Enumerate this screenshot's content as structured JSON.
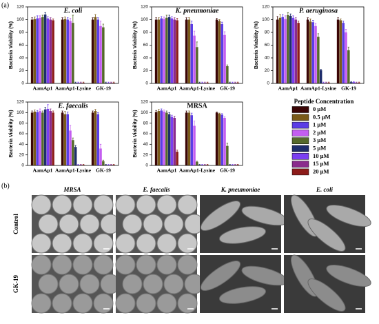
{
  "panel_a_label": "(a)",
  "chart_data": [
    {
      "type": "bar",
      "title": "E. coli",
      "ylabel": "Bacteria Viability (%)",
      "categories": [
        "AamAp1",
        "AamAp1-Lysine",
        "GK-19"
      ],
      "ylim": [
        0,
        120
      ],
      "yticks": [
        0,
        20,
        40,
        60,
        80,
        100,
        120
      ],
      "series": [
        {
          "values": [
            100,
            100,
            100
          ],
          "errors": [
            3,
            3,
            3
          ]
        },
        {
          "values": [
            101,
            101,
            104
          ],
          "errors": [
            3,
            3,
            4
          ]
        },
        {
          "values": [
            102,
            100,
            100
          ],
          "errors": [
            4,
            3,
            3
          ]
        },
        {
          "values": [
            103,
            98,
            90
          ],
          "errors": [
            3,
            4,
            8
          ]
        },
        {
          "values": [
            104,
            95,
            88
          ],
          "errors": [
            3,
            12,
            5
          ]
        },
        {
          "values": [
            108,
            1,
            1
          ],
          "errors": [
            3,
            1,
            1
          ]
        },
        {
          "values": [
            102,
            1,
            1
          ],
          "errors": [
            3,
            1,
            1
          ]
        },
        {
          "values": [
            100,
            1,
            1
          ],
          "errors": [
            3,
            1,
            1
          ]
        },
        {
          "values": [
            99,
            1,
            1
          ],
          "errors": [
            2,
            1,
            1
          ]
        }
      ]
    },
    {
      "type": "bar",
      "title": "K. pneumoniae",
      "ylabel": "Bacteria Viability (%)",
      "categories": [
        "AamAp1",
        "AamAp1-Lysine",
        "GK-19"
      ],
      "ylim": [
        0,
        120
      ],
      "yticks": [
        0,
        20,
        40,
        60,
        80,
        100,
        120
      ],
      "series": [
        {
          "values": [
            100,
            100,
            100
          ],
          "errors": [
            3,
            3,
            2
          ]
        },
        {
          "values": [
            100,
            100,
            98
          ],
          "errors": [
            3,
            3,
            2
          ]
        },
        {
          "values": [
            102,
            93,
            93
          ],
          "errors": [
            3,
            5,
            3
          ]
        },
        {
          "values": [
            101,
            75,
            76
          ],
          "errors": [
            3,
            7,
            5
          ]
        },
        {
          "values": [
            103,
            57,
            27
          ],
          "errors": [
            4,
            8,
            2
          ]
        },
        {
          "values": [
            104,
            1,
            1
          ],
          "errors": [
            3,
            1,
            1
          ]
        },
        {
          "values": [
            102,
            1,
            1
          ],
          "errors": [
            3,
            1,
            1
          ]
        },
        {
          "values": [
            100,
            1,
            1
          ],
          "errors": [
            3,
            1,
            1
          ]
        },
        {
          "values": [
            99,
            1,
            1
          ],
          "errors": [
            3,
            1,
            1
          ]
        }
      ]
    },
    {
      "type": "bar",
      "title": "P. aeruginosa",
      "ylabel": "Bacteria Viability (%)",
      "categories": [
        "AamAp1",
        "AamAp1-Lysine",
        "GK-19"
      ],
      "ylim": [
        0,
        120
      ],
      "yticks": [
        0,
        20,
        40,
        60,
        80,
        100,
        120
      ],
      "series": [
        {
          "values": [
            100,
            100,
            100
          ],
          "errors": [
            5,
            3,
            3
          ]
        },
        {
          "values": [
            103,
            97,
            99
          ],
          "errors": [
            5,
            4,
            2
          ]
        },
        {
          "values": [
            104,
            96,
            95
          ],
          "errors": [
            4,
            3,
            3
          ]
        },
        {
          "values": [
            101,
            90,
            80
          ],
          "errors": [
            5,
            4,
            5
          ]
        },
        {
          "values": [
            107,
            73,
            52
          ],
          "errors": [
            4,
            5,
            5
          ]
        },
        {
          "values": [
            106,
            21,
            2
          ],
          "errors": [
            3,
            1,
            1
          ]
        },
        {
          "values": [
            103,
            1,
            2
          ],
          "errors": [
            3,
            1,
            1
          ]
        },
        {
          "values": [
            100,
            1,
            1
          ],
          "errors": [
            3,
            1,
            1
          ]
        },
        {
          "values": [
            95,
            1,
            1
          ],
          "errors": [
            3,
            1,
            1
          ]
        }
      ]
    },
    {
      "type": "bar",
      "title": "E. faecalis",
      "ylabel": "Bacteria Viability (%)",
      "categories": [
        "AamAp1",
        "AamAp1-Lysine",
        "GK-19"
      ],
      "ylim": [
        0,
        120
      ],
      "yticks": [
        0,
        20,
        40,
        60,
        80,
        100,
        120
      ],
      "series": [
        {
          "values": [
            100,
            100,
            100
          ],
          "errors": [
            3,
            3,
            3
          ]
        },
        {
          "values": [
            102,
            97,
            103
          ],
          "errors": [
            3,
            5,
            3
          ]
        },
        {
          "values": [
            101,
            97,
            97
          ],
          "errors": [
            3,
            4,
            3
          ]
        },
        {
          "values": [
            103,
            66,
            32
          ],
          "errors": [
            4,
            10,
            8
          ]
        },
        {
          "values": [
            100,
            48,
            8
          ],
          "errors": [
            3,
            4,
            2
          ]
        },
        {
          "values": [
            106,
            35,
            1
          ],
          "errors": [
            4,
            3,
            1
          ]
        },
        {
          "values": [
            107,
            1,
            1
          ],
          "errors": [
            8,
            1,
            1
          ]
        },
        {
          "values": [
            103,
            1,
            1
          ],
          "errors": [
            4,
            1,
            1
          ]
        },
        {
          "values": [
            100,
            1,
            1
          ],
          "errors": [
            3,
            1,
            1
          ]
        }
      ]
    },
    {
      "type": "bar",
      "title": "MRSA",
      "ylabel": "Bacteria Viability (%)",
      "categories": [
        "AamAp1",
        "AamAp1-Lysine",
        "GK-19"
      ],
      "ylim": [
        0,
        120
      ],
      "yticks": [
        0,
        20,
        40,
        60,
        80,
        100,
        120
      ],
      "series": [
        {
          "values": [
            101,
            100,
            100
          ],
          "errors": [
            3,
            3,
            1
          ]
        },
        {
          "values": [
            103,
            100,
            98
          ],
          "errors": [
            3,
            3,
            1
          ]
        },
        {
          "values": [
            104,
            95,
            96
          ],
          "errors": [
            3,
            4,
            2
          ]
        },
        {
          "values": [
            102,
            75,
            90
          ],
          "errors": [
            3,
            9,
            2
          ]
        },
        {
          "values": [
            100,
            7,
            37
          ],
          "errors": [
            3,
            1,
            5
          ]
        },
        {
          "values": [
            97,
            1,
            1
          ],
          "errors": [
            3,
            1,
            1
          ]
        },
        {
          "values": [
            92,
            1,
            1
          ],
          "errors": [
            3,
            1,
            1
          ]
        },
        {
          "values": [
            90,
            1,
            1
          ],
          "errors": [
            3,
            1,
            1
          ]
        },
        {
          "values": [
            26,
            1,
            1
          ],
          "errors": [
            3,
            1,
            1
          ]
        }
      ]
    }
  ],
  "legend": {
    "title": "Peptide Concentration",
    "entries": [
      {
        "name": "0 μM",
        "color": "#3a0505"
      },
      {
        "name": "0.5 μM",
        "color": "#7a5a18"
      },
      {
        "name": "1 μM",
        "color": "#5a3ce6"
      },
      {
        "name": "2 μM",
        "color": "#c45ef0"
      },
      {
        "name": "3 μM",
        "color": "#55692a"
      },
      {
        "name": "5 μM",
        "color": "#1e2d6b"
      },
      {
        "name": "10 μM",
        "color": "#7b3ef2"
      },
      {
        "name": "15 μM",
        "color": "#8a2c8c"
      },
      {
        "name": "20 μM",
        "color": "#8c1c1a"
      }
    ]
  },
  "panel_b": {
    "label": "(b)",
    "columns": [
      "MRSA",
      "E. faecalis",
      "K. pneumoniae",
      "E. coli"
    ],
    "rows": [
      "Control",
      "GK-19"
    ]
  }
}
